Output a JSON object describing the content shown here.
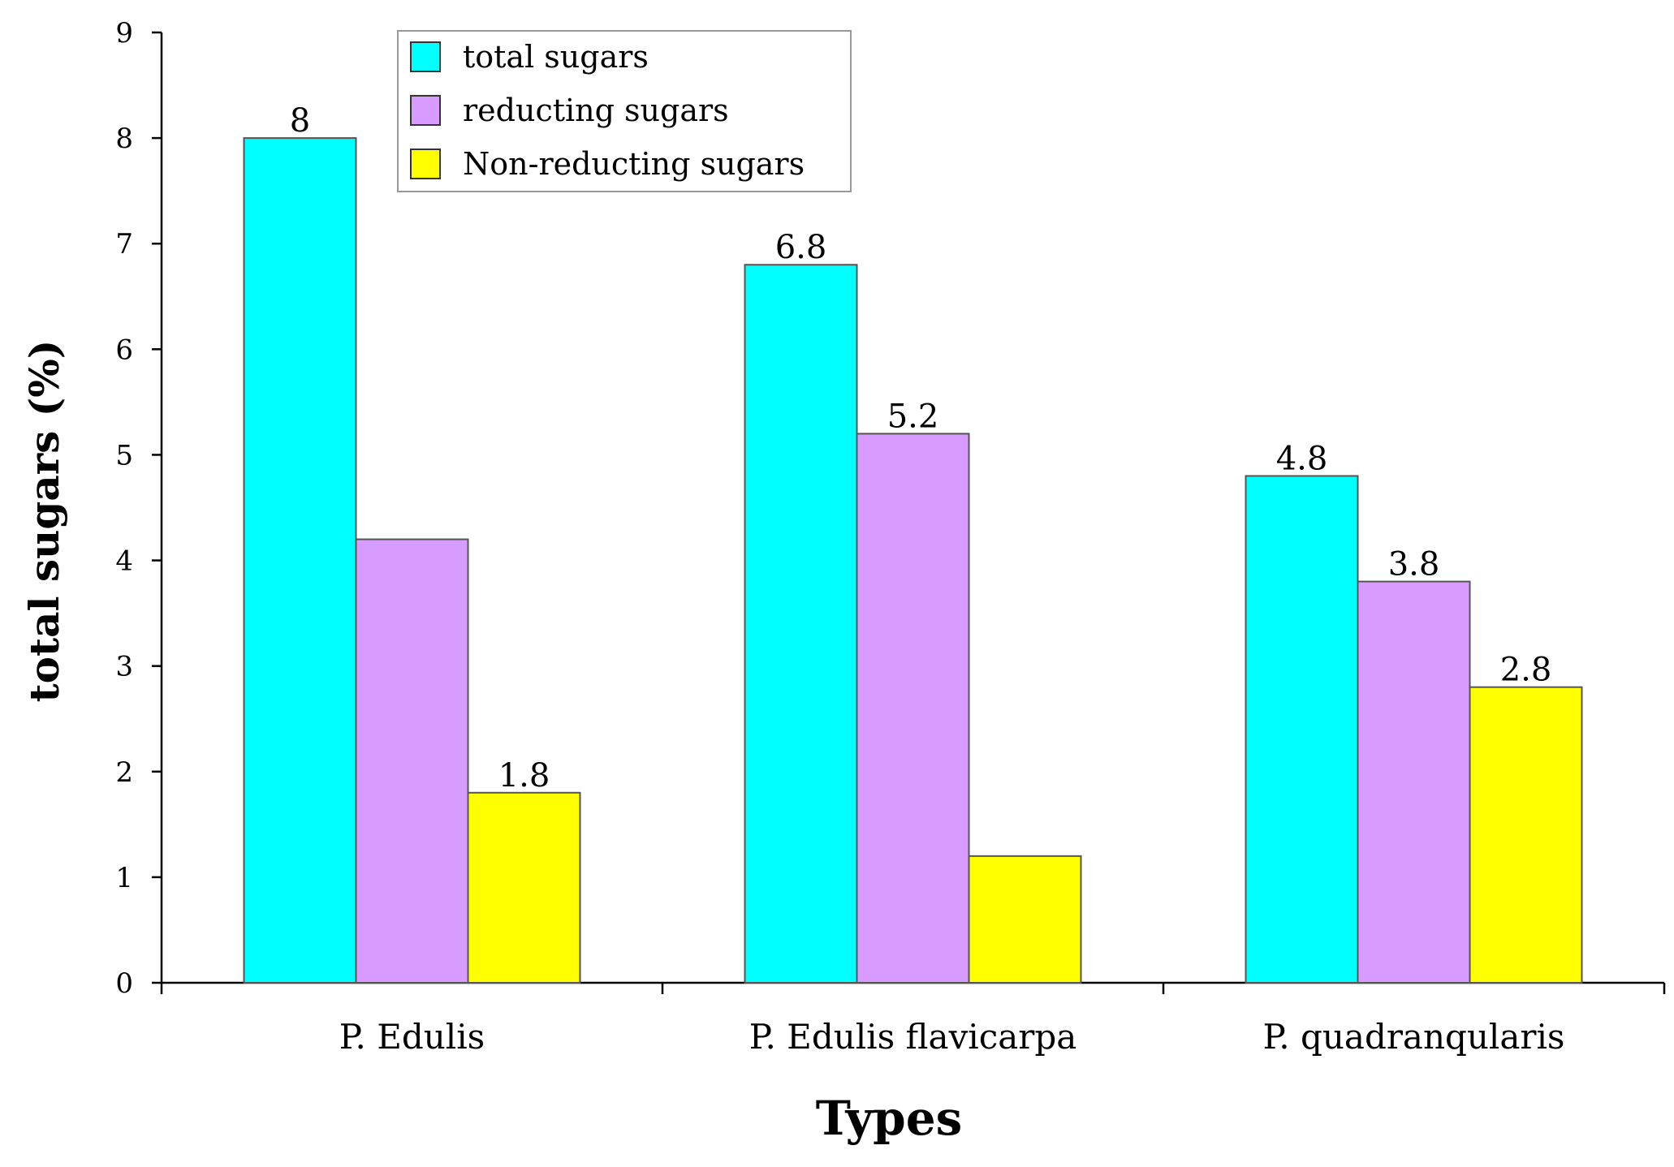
{
  "chart_data": {
    "type": "bar",
    "title": "",
    "xlabel": "Types",
    "ylabel": "total sugars (%)",
    "ylim": [
      0,
      9
    ],
    "yticks": [
      "0",
      "1",
      "2",
      "3",
      "4",
      "5",
      "6",
      "7",
      "8",
      "9"
    ],
    "categories": [
      "P. Edulis",
      "P. Edulis flavicarpa",
      "P. quadranqularis"
    ],
    "series": [
      {
        "name": "total sugars",
        "color": "#00FFFF",
        "values": [
          8,
          6.8,
          4.8
        ],
        "labels": [
          "8",
          "6.8",
          "4.8"
        ]
      },
      {
        "name": "reducting sugars",
        "color": "#D89BFF",
        "values": [
          4.2,
          5.2,
          3.8
        ],
        "labels": [
          "",
          "5.2",
          "3.8"
        ]
      },
      {
        "name": "Non-reducting sugars",
        "color": "#FFFF00",
        "values": [
          1.8,
          1.2,
          2.8
        ],
        "labels": [
          "1.8",
          "",
          "2.8"
        ]
      }
    ],
    "legend": "top-left-inside",
    "grid": false
  }
}
